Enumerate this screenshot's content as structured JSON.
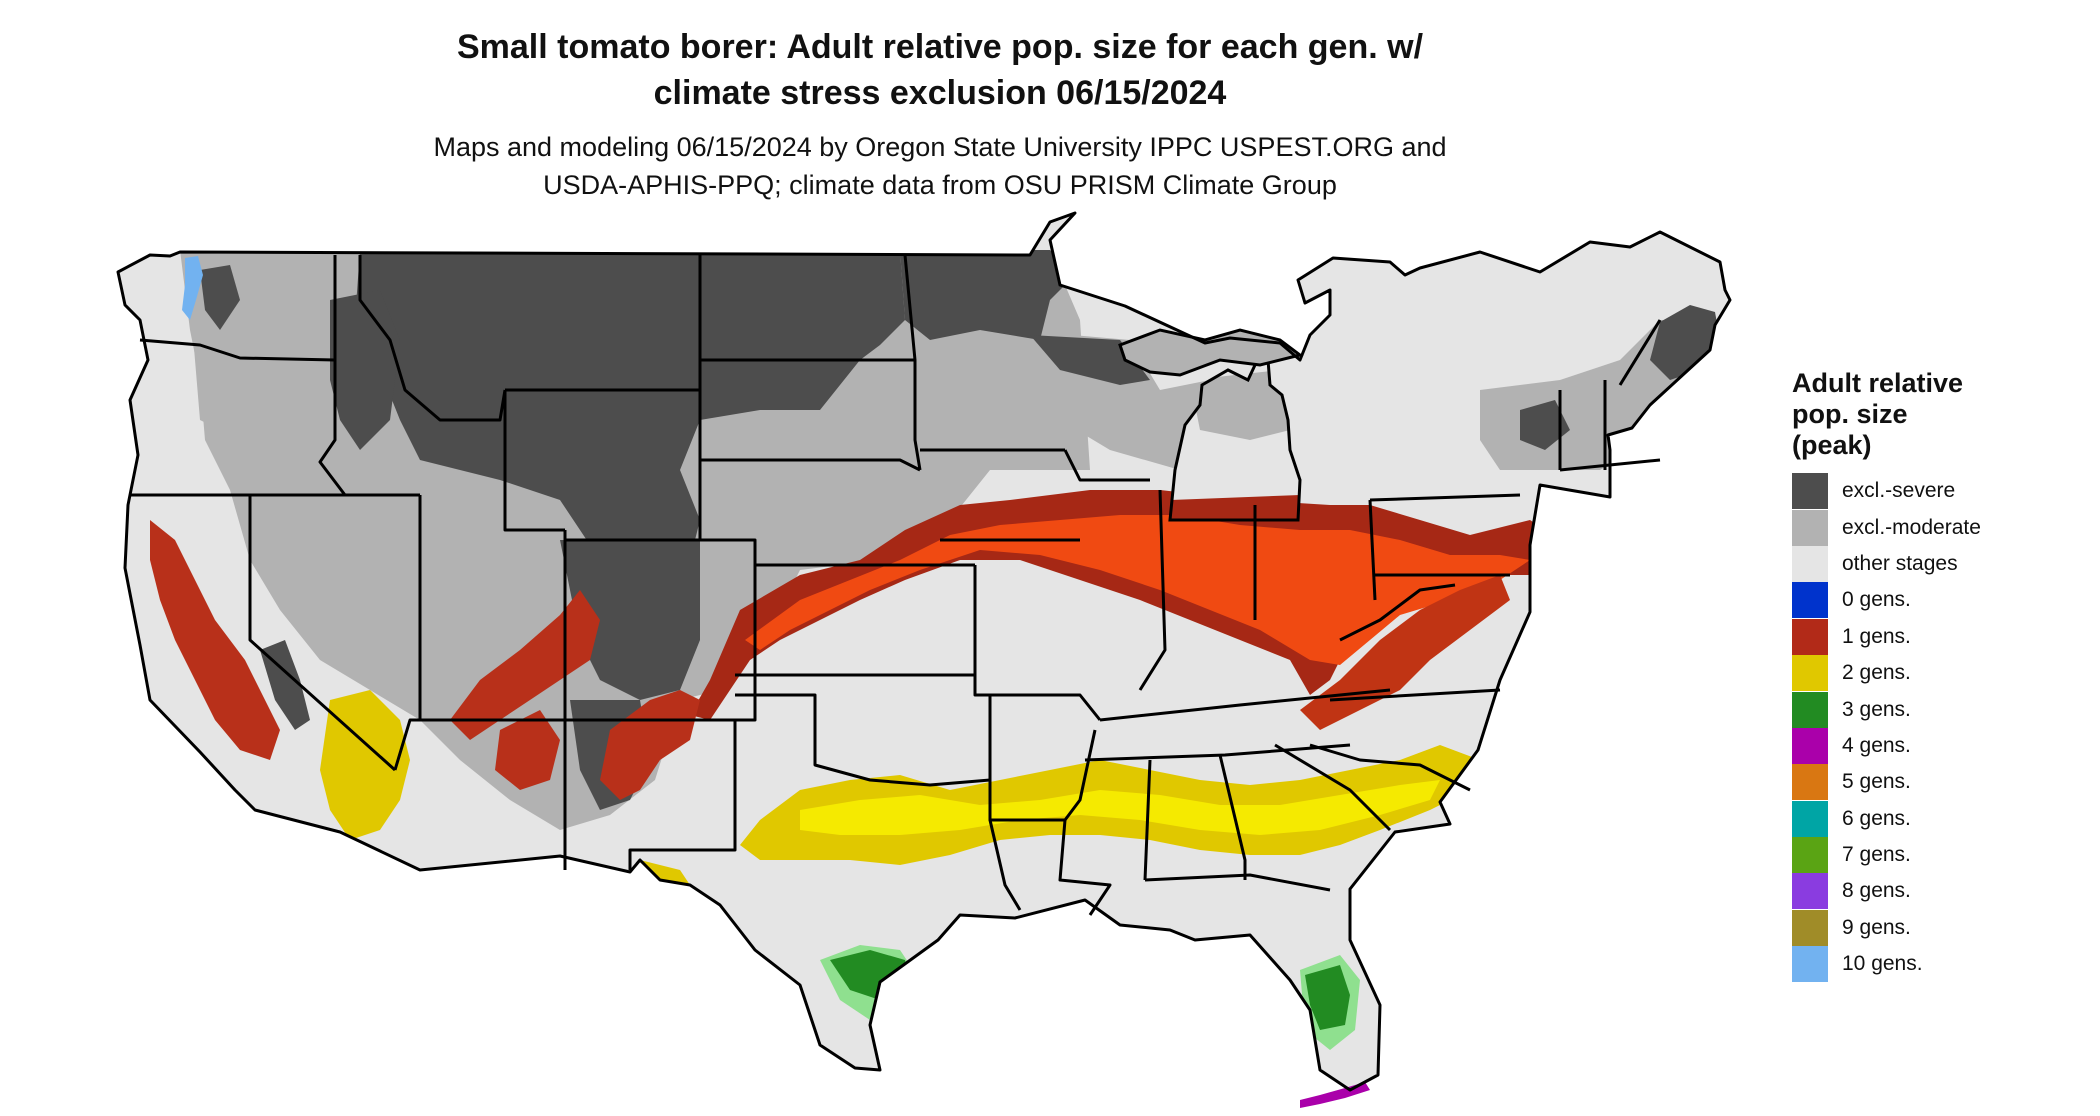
{
  "title_line1": "Small tomato borer: Adult relative pop. size for each gen. w/",
  "title_line2": "climate stress exclusion 06/15/2024",
  "subtitle_line1": "Maps and modeling 06/15/2024 by Oregon State University IPPC USPEST.ORG and",
  "subtitle_line2": "USDA-APHIS-PPQ; climate data from OSU PRISM Climate Group",
  "legend": {
    "title_line1": "Adult relative",
    "title_line2": "pop. size",
    "title_line3": "(peak)",
    "items": [
      {
        "label": "excl.-severe",
        "color": "#4d4d4d"
      },
      {
        "label": "excl.-moderate",
        "color": "#b2b2b2"
      },
      {
        "label": "other stages",
        "color": "#e5e5e5"
      },
      {
        "label": "0 gens.",
        "color": "#0033cc"
      },
      {
        "label": "1 gens.",
        "color": "#b22a18"
      },
      {
        "label": "2 gens.",
        "color": "#e0c800"
      },
      {
        "label": "3 gens.",
        "color": "#228b22"
      },
      {
        "label": "4 gens.",
        "color": "#aa00aa"
      },
      {
        "label": "5 gens.",
        "color": "#d97712"
      },
      {
        "label": "6 gens.",
        "color": "#00a5a5"
      },
      {
        "label": "7 gens.",
        "color": "#5aa414"
      },
      {
        "label": "8 gens.",
        "color": "#8a3ce0"
      },
      {
        "label": "9 gens.",
        "color": "#a08c28"
      },
      {
        "label": "10 gens.",
        "color": "#72b2f0"
      }
    ]
  },
  "map_colors": {
    "excl_severe": "#4d4d4d",
    "excl_moderate": "#b2b2b2",
    "other_stages": "#e5e5e5",
    "one_gen_dark": "#a62815",
    "one_gen_bright": "#f04a12",
    "two_gens": "#e0c800",
    "two_gens_bright": "#f5ea00",
    "three_gens": "#228b22",
    "three_gens_light": "#8fe08f",
    "four_gens": "#aa00aa",
    "ten_gens": "#72b2f0",
    "borders": "#000000"
  }
}
